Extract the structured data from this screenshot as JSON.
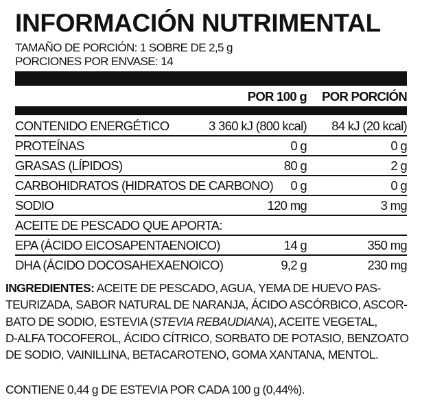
{
  "title": "INFORMACIÓN NUTRIMENTAL",
  "serving_size": "TAMAÑO DE PORCIÓN: 1 SOBRE DE 2,5 g",
  "servings_per_container": "PORCIONES POR ENVASE: 14",
  "columns": [
    "POR 100 g",
    "POR PORCIÓN"
  ],
  "rows": [
    {
      "label": "CONTENIDO ENERGÉTICO",
      "per100": "3 360 kJ (800 kcal)",
      "perServing": "84 kJ (20 kcal)"
    },
    {
      "label": "PROTEÍNAS",
      "per100": "0 g",
      "perServing": "0 g"
    },
    {
      "label": "GRASAS (LÍPIDOS)",
      "per100": "80 g",
      "perServing": "2 g"
    },
    {
      "label": "CARBOHIDRATOS (HIDRATOS DE CARBONO)",
      "per100": "0 g",
      "perServing": "0 g"
    },
    {
      "label": "SODIO",
      "per100": "120 mg",
      "perServing": "3 mg"
    },
    {
      "label": "ACEITE DE PESCADO QUE APORTA:"
    },
    {
      "label": "EPA (ÁCIDO EICOSAPENTAENOICO)",
      "per100": "14 g",
      "perServing": "350 mg"
    },
    {
      "label": "DHA (ÁCIDO DOCOSAHEXAENOICO)",
      "per100": "9,2 g",
      "perServing": "230 mg"
    }
  ],
  "ingredients": {
    "label": "INGREDIENTES:",
    "line1": " ACEITE DE PESCADO, AGUA, YEMA DE HUEVO PAS-",
    "line2": "TEURIZADA, SABOR NATURAL DE NARANJA, ÁCIDO ASCÓRBICO, ASCOR-",
    "line3a": "BATO DE SODIO, ESTEVIA (",
    "line3_italic": "STEVIA REBAUDIANA",
    "line3b": "), ACEITE VEGETAL,",
    "line4": "D-ALFA TOCOFEROL, ÁCIDO CÍTRICO, SORBATO DE POTASIO, BENZOATO",
    "line5": "DE SODIO, VAINILLINA, BETACAROTENO, GOMA XANTANA, MENTOL."
  },
  "note": "CONTIENE 0,44 g DE ESTEVIA POR CADA 100 g (0,44%)."
}
